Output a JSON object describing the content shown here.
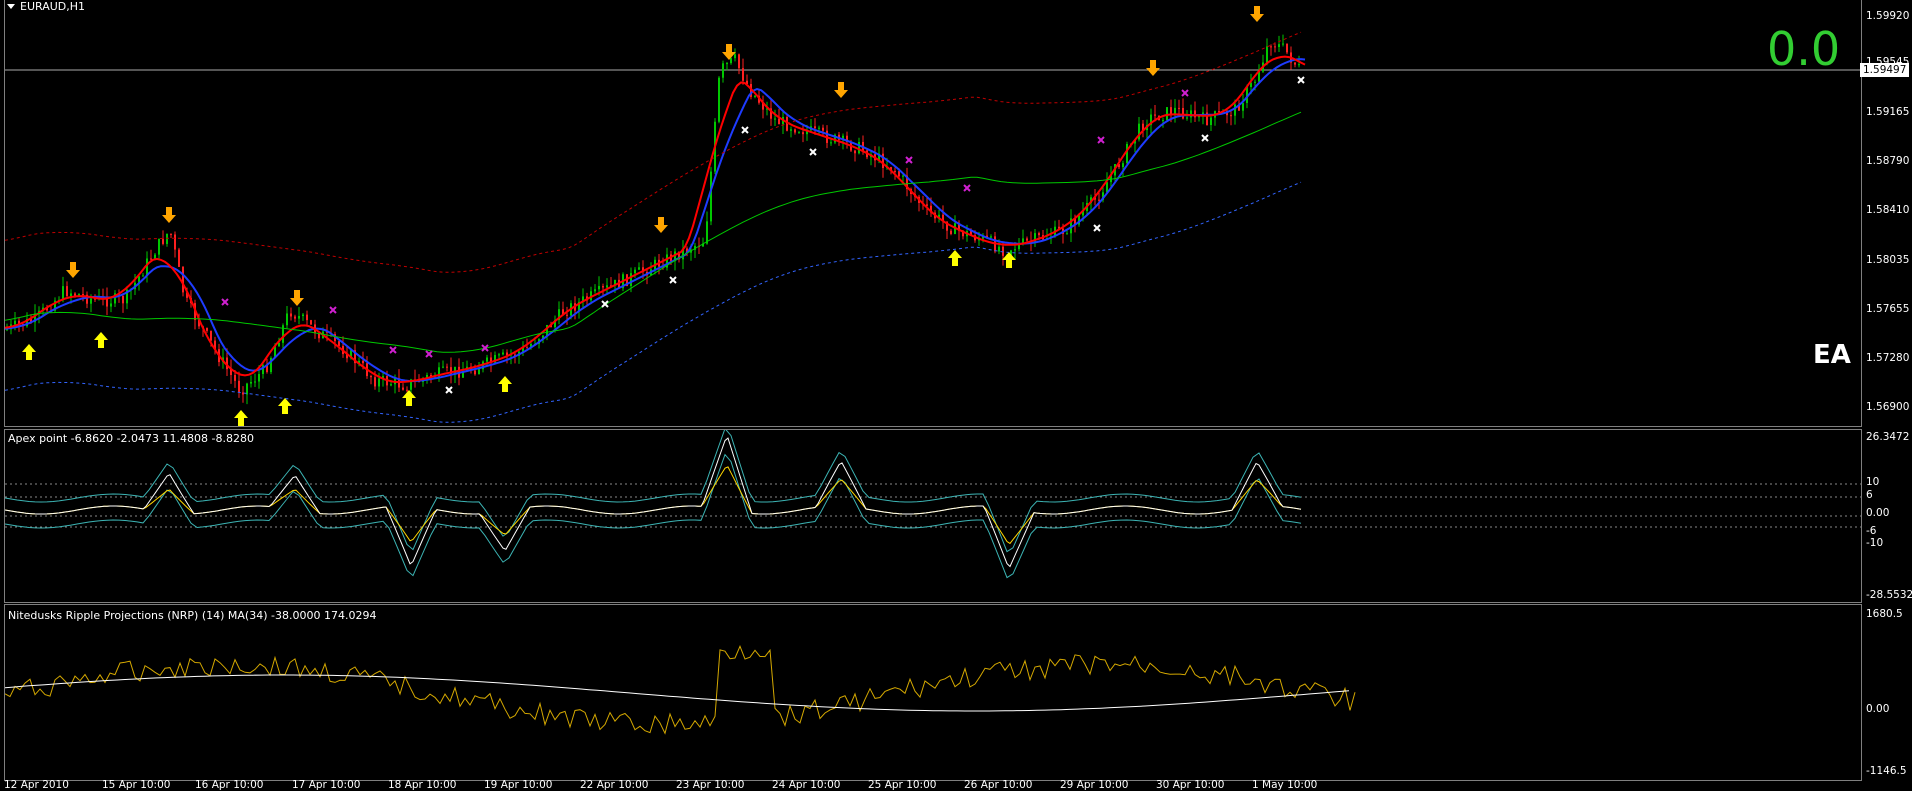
{
  "main": {
    "title": "EURAUD,H1",
    "big_value": "0.0",
    "ea_label": "EA",
    "current_price": "1.59497",
    "y_ticks": [
      "1.59920",
      "1.59545",
      "1.59165",
      "1.58790",
      "1.58410",
      "1.58035",
      "1.57655",
      "1.57280",
      "1.56900"
    ]
  },
  "apex": {
    "title": "Apex point -6.8620 -2.0473 11.4808 -8.8280",
    "y_ticks": [
      "26.3472",
      "10",
      "6",
      "0.00",
      "-6",
      "-10",
      "-28.5532"
    ]
  },
  "nrp": {
    "title": "Nitedusks Ripple Projections (NRP) (14) MA(34) -38.0000 174.0294",
    "y_ticks": [
      "1680.5",
      "0.00",
      "-1146.5"
    ]
  },
  "x_axis": {
    "ticks": [
      "12 Apr 2010",
      "15 Apr 10:00",
      "16 Apr 10:00",
      "17 Apr 10:00",
      "18 Apr 10:00",
      "19 Apr 10:00",
      "22 Apr 10:00",
      "23 Apr 10:00",
      "24 Apr 10:00",
      "25 Apr 10:00",
      "26 Apr 10:00",
      "29 Apr 10:00",
      "30 Apr 10:00",
      "1 May 10:00"
    ]
  },
  "colors": {
    "bull_candle": "#00c800",
    "bear_candle": "#ff2020",
    "fast_ma_red": "#ff0000",
    "fast_ma_blue": "#1e3cff",
    "mid_ma_green": "#00c800",
    "upper_band": "#c00000",
    "lower_band": "#3264ff",
    "apex_cyan": "#3cb4b4",
    "apex_yellow": "#ffd700",
    "nrp_yellow": "#d4a800",
    "up_arrow": "#ffff00",
    "down_arrow": "#ffa500",
    "cross_magenta": "#d020d0"
  }
}
